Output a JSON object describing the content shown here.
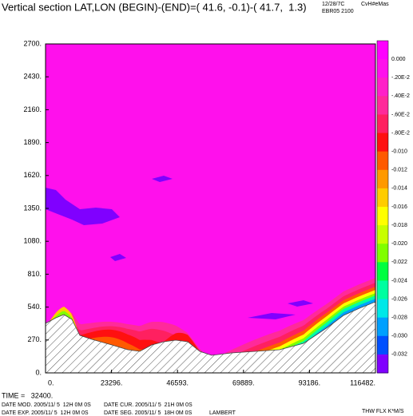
{
  "chart_data": {
    "type": "contour",
    "title": "Vertical section LAT,LON (BEGIN)-(END)=( 41.6, -0.1)-( 41.7,  1.3)",
    "header_right": [
      "12/28/7C",
      "CvH#eMas",
      "EBR05 2100"
    ],
    "xlim": [
      0,
      116482
    ],
    "xticks": [
      {
        "value": 0,
        "label": "0."
      },
      {
        "value": 23296,
        "label": "23296."
      },
      {
        "value": 46593,
        "label": "46593."
      },
      {
        "value": 69889,
        "label": "69889."
      },
      {
        "value": 93186,
        "label": "93186."
      },
      {
        "value": 116482,
        "label": "116482."
      }
    ],
    "ylim": [
      0,
      2700
    ],
    "yticks": [
      {
        "value": 0,
        "label": "0."
      },
      {
        "value": 270,
        "label": "270."
      },
      {
        "value": 540,
        "label": "540."
      },
      {
        "value": 810,
        "label": "810."
      },
      {
        "value": 1080,
        "label": "1080."
      },
      {
        "value": 1350,
        "label": "1350."
      },
      {
        "value": 1620,
        "label": "1620."
      },
      {
        "value": 1890,
        "label": "1890."
      },
      {
        "value": 2160,
        "label": "2160."
      },
      {
        "value": 2430,
        "label": "2430."
      },
      {
        "value": 2700,
        "label": "2700."
      }
    ],
    "levels": [
      {
        "value": 0,
        "label": "0.000"
      },
      {
        "value": -0.002,
        "label": "-.20E-2"
      },
      {
        "value": -0.004,
        "label": "-.40E-2"
      },
      {
        "value": -0.006,
        "label": "-.60E-2"
      },
      {
        "value": -0.008,
        "label": "-.80E-2"
      },
      {
        "value": -0.01,
        "label": "-0.010"
      },
      {
        "value": -0.012,
        "label": "-0.012"
      },
      {
        "value": -0.014,
        "label": "-0.014"
      },
      {
        "value": -0.016,
        "label": "-0.016"
      },
      {
        "value": -0.018,
        "label": "-0.018"
      },
      {
        "value": -0.02,
        "label": "-0.020"
      },
      {
        "value": -0.022,
        "label": "-0.022"
      },
      {
        "value": -0.024,
        "label": "-0.024"
      },
      {
        "value": -0.026,
        "label": "-0.026"
      },
      {
        "value": -0.028,
        "label": "-0.028"
      },
      {
        "value": -0.03,
        "label": "-0.030"
      },
      {
        "value": -0.032,
        "label": "-0.032"
      }
    ],
    "level_colors": [
      "#ff00ff",
      "#ff10ec",
      "#ff20c8",
      "#ff2a9a",
      "#ff2060",
      "#ff1010",
      "#ff5a00",
      "#ff9900",
      "#ffcc00",
      "#ffff00",
      "#c8ff00",
      "#80ff00",
      "#00ff40",
      "#00ffa0",
      "#00e8e8",
      "#00a0ff",
      "#0050ff",
      "#8000ff"
    ],
    "footer": {
      "time": "TIME =   32400.",
      "date_mod": "DATE MOD. 2005/11/ 5  12H 0M 0S",
      "date_cur": "DATE CUR. 2005/11/ 5  21H 0M 0S",
      "date_exp": "DATE EXP. 2005/11/ 5  12H 0M 0S",
      "date_seg": "DATE SEG. 2005/11/ 5  18H 0M 0S",
      "projection": "LAMBERT",
      "field": "THW FLX K*M/S"
    }
  }
}
